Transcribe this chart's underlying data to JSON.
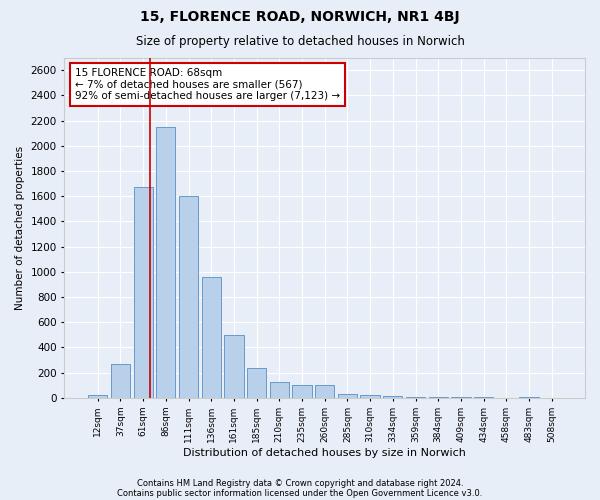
{
  "title1": "15, FLORENCE ROAD, NORWICH, NR1 4BJ",
  "title2": "Size of property relative to detached houses in Norwich",
  "xlabel": "Distribution of detached houses by size in Norwich",
  "ylabel": "Number of detached properties",
  "categories": [
    "12sqm",
    "37sqm",
    "61sqm",
    "86sqm",
    "111sqm",
    "136sqm",
    "161sqm",
    "185sqm",
    "210sqm",
    "235sqm",
    "260sqm",
    "285sqm",
    "310sqm",
    "334sqm",
    "359sqm",
    "384sqm",
    "409sqm",
    "434sqm",
    "458sqm",
    "483sqm",
    "508sqm"
  ],
  "values": [
    20,
    270,
    1670,
    2150,
    1600,
    960,
    500,
    240,
    130,
    105,
    100,
    35,
    20,
    15,
    5,
    5,
    10,
    5,
    2,
    5,
    2
  ],
  "bar_color": "#b8d0ea",
  "bar_edge_color": "#6699cc",
  "annotation_text": "15 FLORENCE ROAD: 68sqm\n← 7% of detached houses are smaller (567)\n92% of semi-detached houses are larger (7,123) →",
  "annotation_box_color": "#ffffff",
  "annotation_box_edge": "#cc0000",
  "vline_color": "#cc0000",
  "footer1": "Contains HM Land Registry data © Crown copyright and database right 2024.",
  "footer2": "Contains public sector information licensed under the Open Government Licence v3.0.",
  "ylim": [
    0,
    2700
  ],
  "yticks": [
    0,
    200,
    400,
    600,
    800,
    1000,
    1200,
    1400,
    1600,
    1800,
    2000,
    2200,
    2400,
    2600
  ],
  "background_color": "#e8eef7",
  "grid_color": "#ffffff",
  "vline_x_index": 2.28
}
